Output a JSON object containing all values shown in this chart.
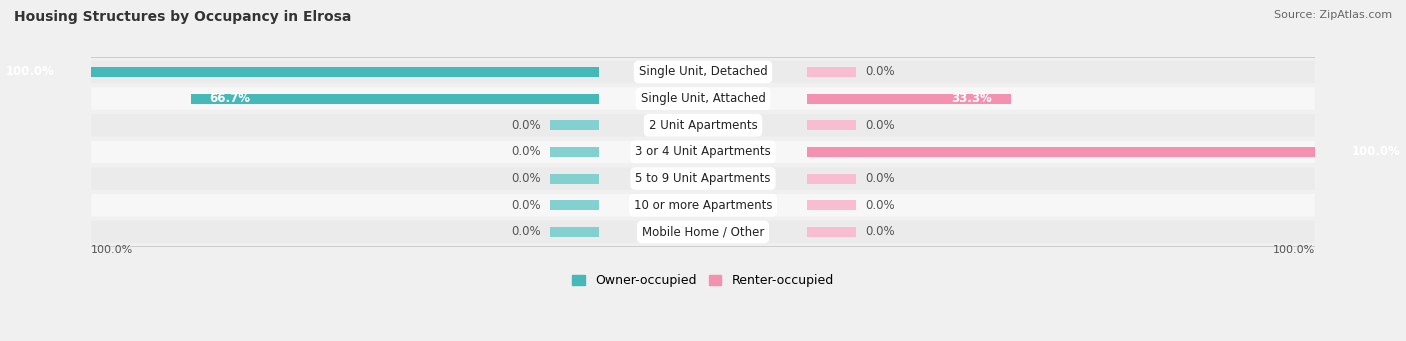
{
  "title": "Housing Structures by Occupancy in Elrosa",
  "source": "Source: ZipAtlas.com",
  "categories": [
    "Single Unit, Detached",
    "Single Unit, Attached",
    "2 Unit Apartments",
    "3 or 4 Unit Apartments",
    "5 to 9 Unit Apartments",
    "10 or more Apartments",
    "Mobile Home / Other"
  ],
  "owner_values": [
    100.0,
    66.7,
    0.0,
    0.0,
    0.0,
    0.0,
    0.0
  ],
  "renter_values": [
    0.0,
    33.3,
    0.0,
    100.0,
    0.0,
    0.0,
    0.0
  ],
  "owner_color": "#45b8b8",
  "renter_color": "#f490b0",
  "owner_stub_color": "#82d0d0",
  "renter_stub_color": "#f8bdd0",
  "owner_label": "Owner-occupied",
  "renter_label": "Renter-occupied",
  "row_color_even": "#ebebeb",
  "row_color_odd": "#f7f7f7",
  "title_fontsize": 10,
  "source_fontsize": 8,
  "bar_label_fontsize": 8.5,
  "category_fontsize": 8.5,
  "legend_fontsize": 9,
  "stub_pct": 8,
  "xlim": 100
}
